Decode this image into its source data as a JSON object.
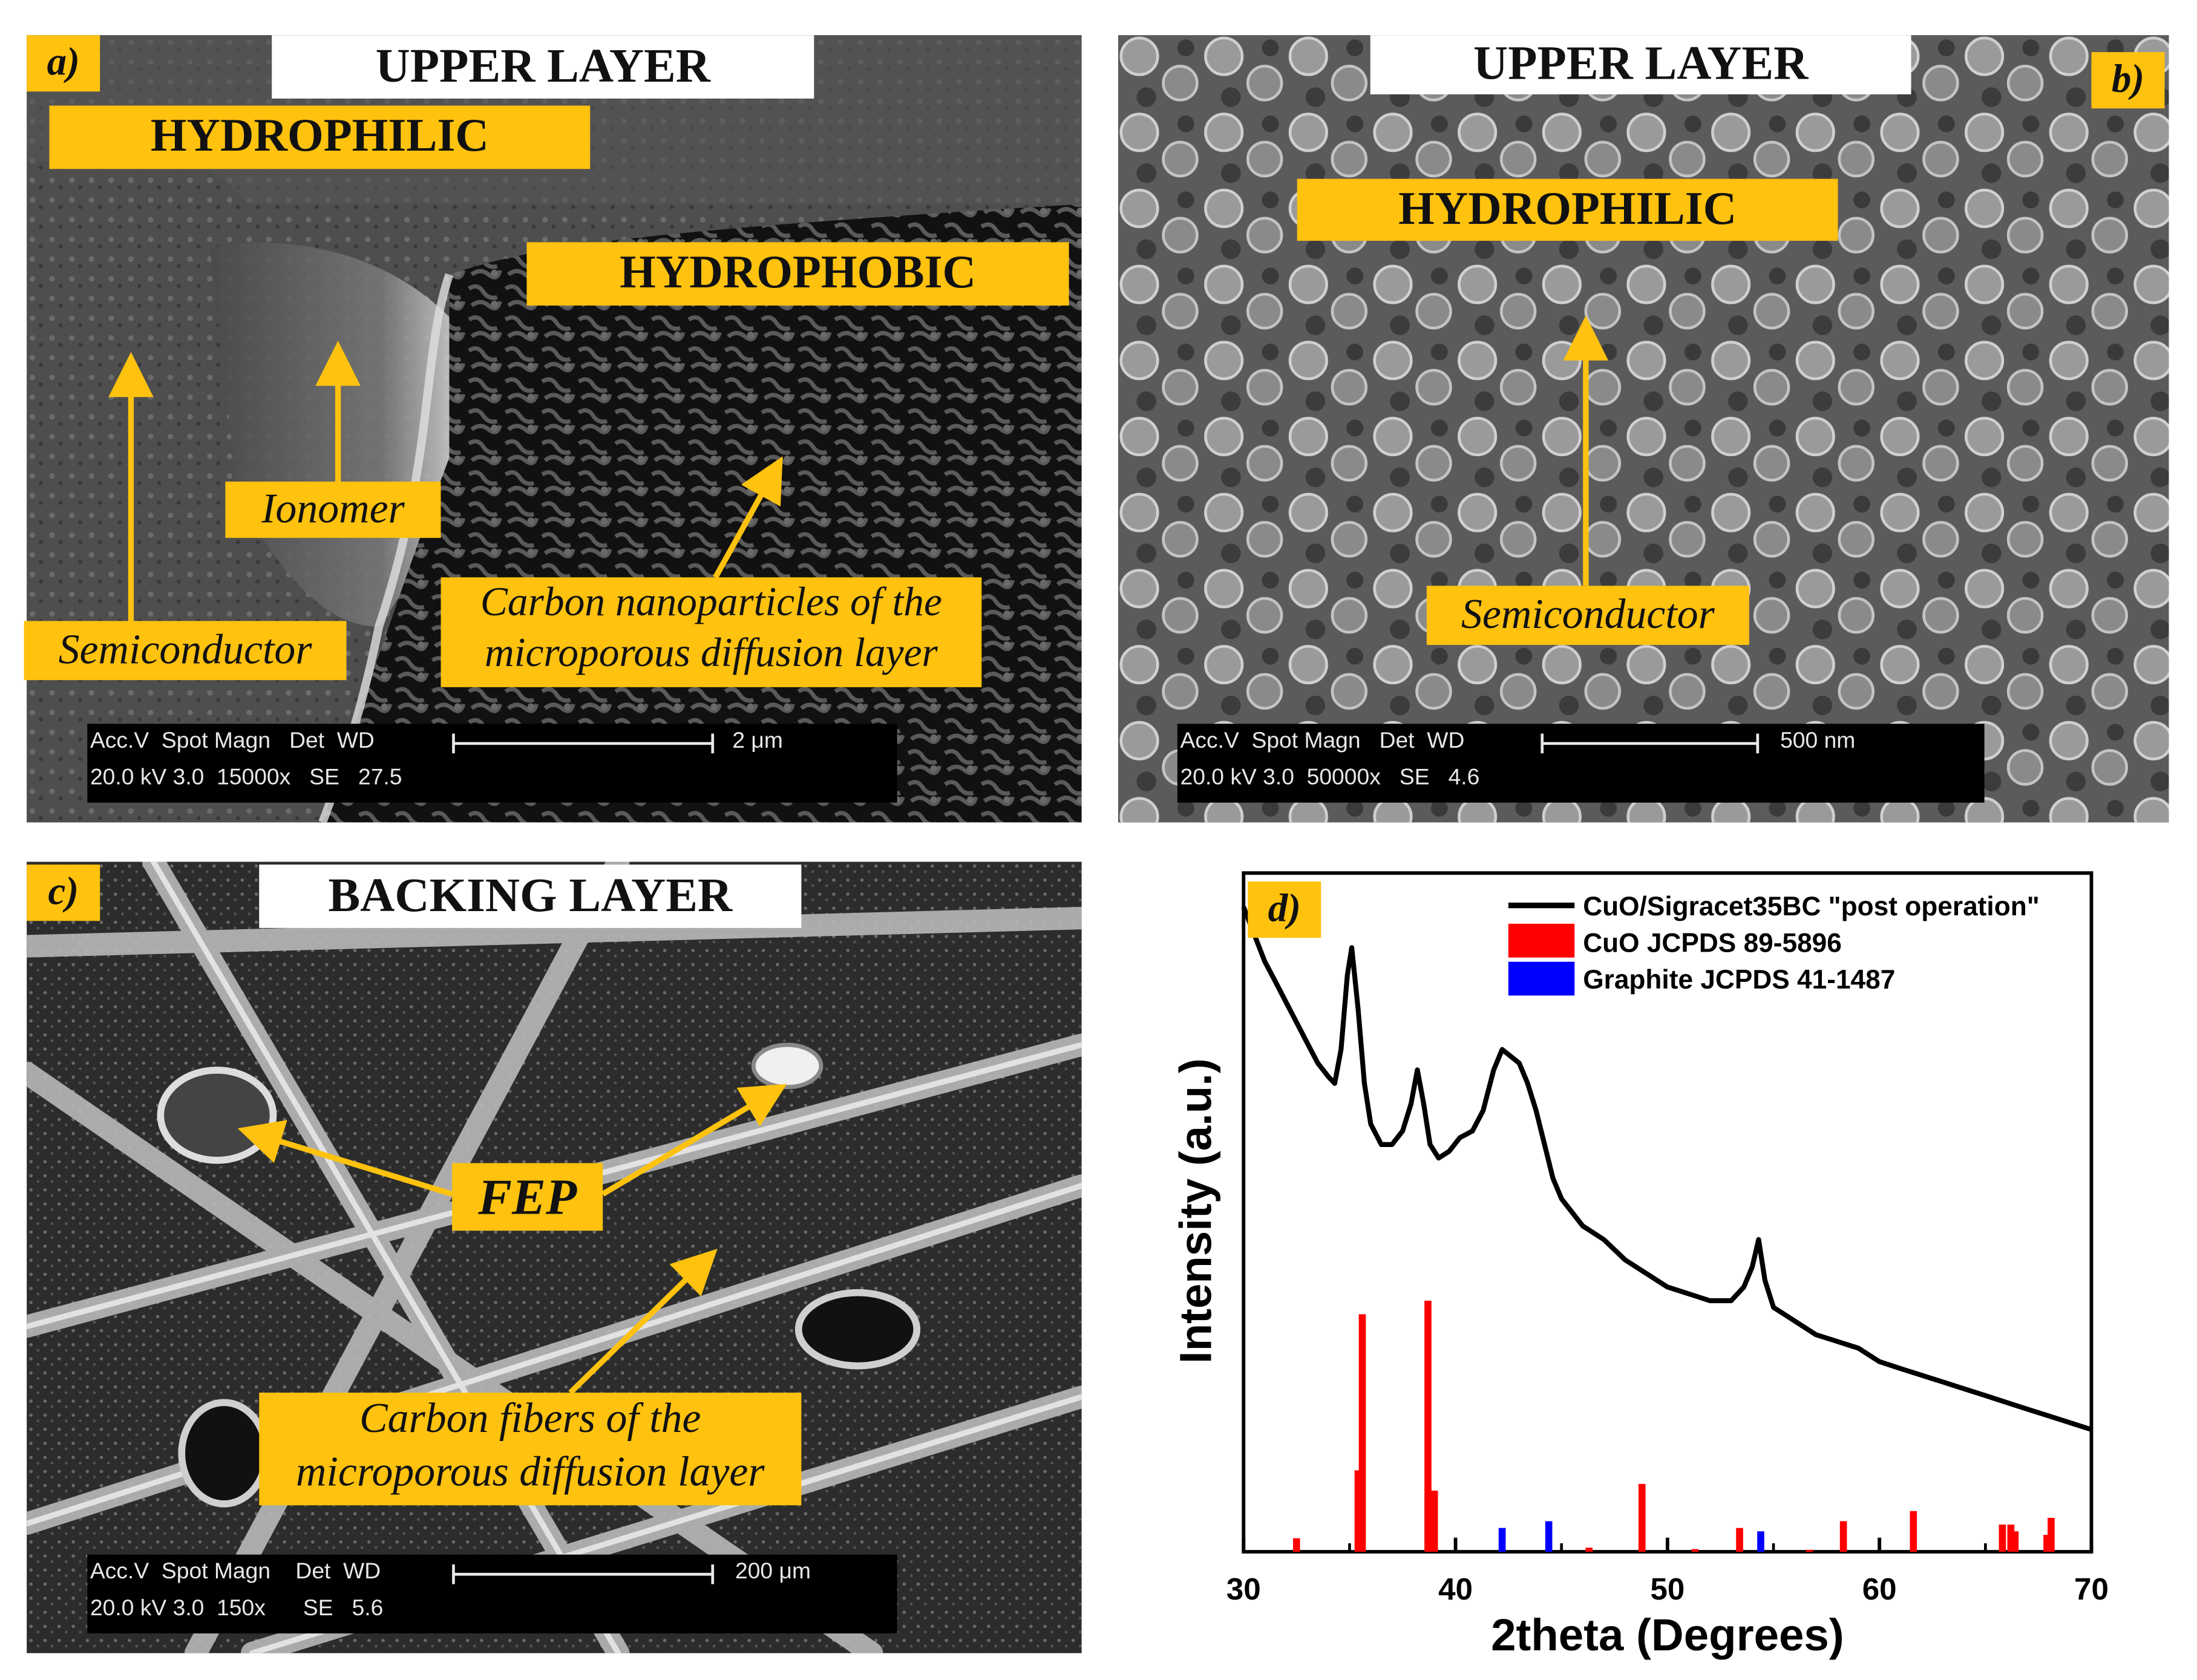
{
  "panel_a": {
    "letter": "a)",
    "title": "UPPER LAYER",
    "label_hydrophilic": "HYDROPHILIC",
    "label_hydrophobic": "HYDROPHOBIC",
    "label_ionomer": "Ionomer",
    "label_semiconductor": "Semiconductor",
    "label_carbon_line1": "Carbon nanoparticles of the",
    "label_carbon_line2": "microporous diffusion layer",
    "databar": {
      "header": "Acc.V  Spot Magn   Det  WD",
      "values": "20.0 kV 3.0  15000x   SE   27.5",
      "scale": "2 μm"
    }
  },
  "panel_b": {
    "letter": "b)",
    "title": "UPPER LAYER",
    "label_hydrophilic": "HYDROPHILIC",
    "label_semiconductor": "Semiconductor",
    "databar": {
      "header": "Acc.V  Spot Magn   Det  WD",
      "values": "20.0 kV 3.0  50000x   SE   4.6",
      "scale": "500 nm"
    }
  },
  "panel_c": {
    "letter": "c)",
    "title": "BACKING LAYER",
    "label_fep": "FEP",
    "label_fibers_line1": "Carbon fibers of the",
    "label_fibers_line2": "microporous diffusion layer",
    "databar": {
      "header": "Acc.V  Spot Magn    Det  WD",
      "values": "20.0 kV 3.0  150x      SE   5.6",
      "scale": "200 μm"
    }
  },
  "panel_d": {
    "letter": "d)"
  },
  "chart_data": {
    "type": "line",
    "xlabel": "2theta (Degrees)",
    "ylabel": "Intensity (a.u.)",
    "xlim": [
      30,
      70
    ],
    "xticks": [
      30,
      40,
      50,
      60,
      70
    ],
    "ylim": [
      0,
      100
    ],
    "yticks_shown": false,
    "legend": "top-right",
    "series": [
      {
        "name": "CuO/Sigracet35BC \"post operation\"",
        "color": "#000000",
        "kind": "line",
        "x": [
          30,
          30.5,
          31,
          31.5,
          32,
          32.5,
          33,
          33.5,
          34,
          34.3,
          34.6,
          34.9,
          35.1,
          35.4,
          35.7,
          36,
          36.5,
          37,
          37.5,
          37.9,
          38.2,
          38.5,
          38.8,
          39.2,
          39.7,
          40.2,
          40.8,
          41.3,
          41.8,
          42.2,
          42.6,
          43.0,
          43.4,
          43.8,
          44.2,
          44.6,
          45.0,
          45.5,
          46,
          47,
          48,
          49,
          50,
          51,
          52,
          53,
          53.6,
          54.0,
          54.3,
          54.6,
          55.0,
          55.5,
          56,
          57,
          58,
          59,
          60,
          61,
          62,
          63,
          64,
          65,
          66,
          67,
          68,
          69,
          70
        ],
        "y": [
          95,
          91,
          87,
          84,
          81,
          78,
          75,
          72,
          70,
          69,
          74,
          85,
          89,
          80,
          69,
          63,
          60,
          60,
          62,
          66,
          71,
          66,
          60,
          58,
          59,
          61,
          62,
          65,
          71,
          74,
          73,
          72,
          69,
          65,
          60,
          55,
          52,
          50,
          48,
          46,
          43,
          41,
          39,
          38,
          37,
          37,
          39,
          42,
          46,
          40,
          36,
          35,
          34,
          32,
          31,
          30,
          28,
          27,
          26,
          25,
          24,
          23,
          22,
          21,
          20,
          19,
          18
        ]
      },
      {
        "name": "CuO JCPDS 89-5896",
        "color": "#ff0000",
        "kind": "sticks",
        "x": [
          32.5,
          35.4,
          35.6,
          38.7,
          39.0,
          46.3,
          48.8,
          51.3,
          53.4,
          56.7,
          58.3,
          61.6,
          65.8,
          66.2,
          66.4,
          67.9,
          68.1
        ],
        "y": [
          2,
          12,
          35,
          37,
          9,
          0.6,
          10,
          0.4,
          3.5,
          0.3,
          4.5,
          6,
          4,
          4,
          3,
          2.5,
          5
        ]
      },
      {
        "name": "Graphite JCPDS 41-1487",
        "color": "#0000ff",
        "kind": "sticks",
        "x": [
          42.2,
          44.4,
          54.4
        ],
        "y": [
          3.5,
          4.5,
          3
        ]
      }
    ]
  }
}
